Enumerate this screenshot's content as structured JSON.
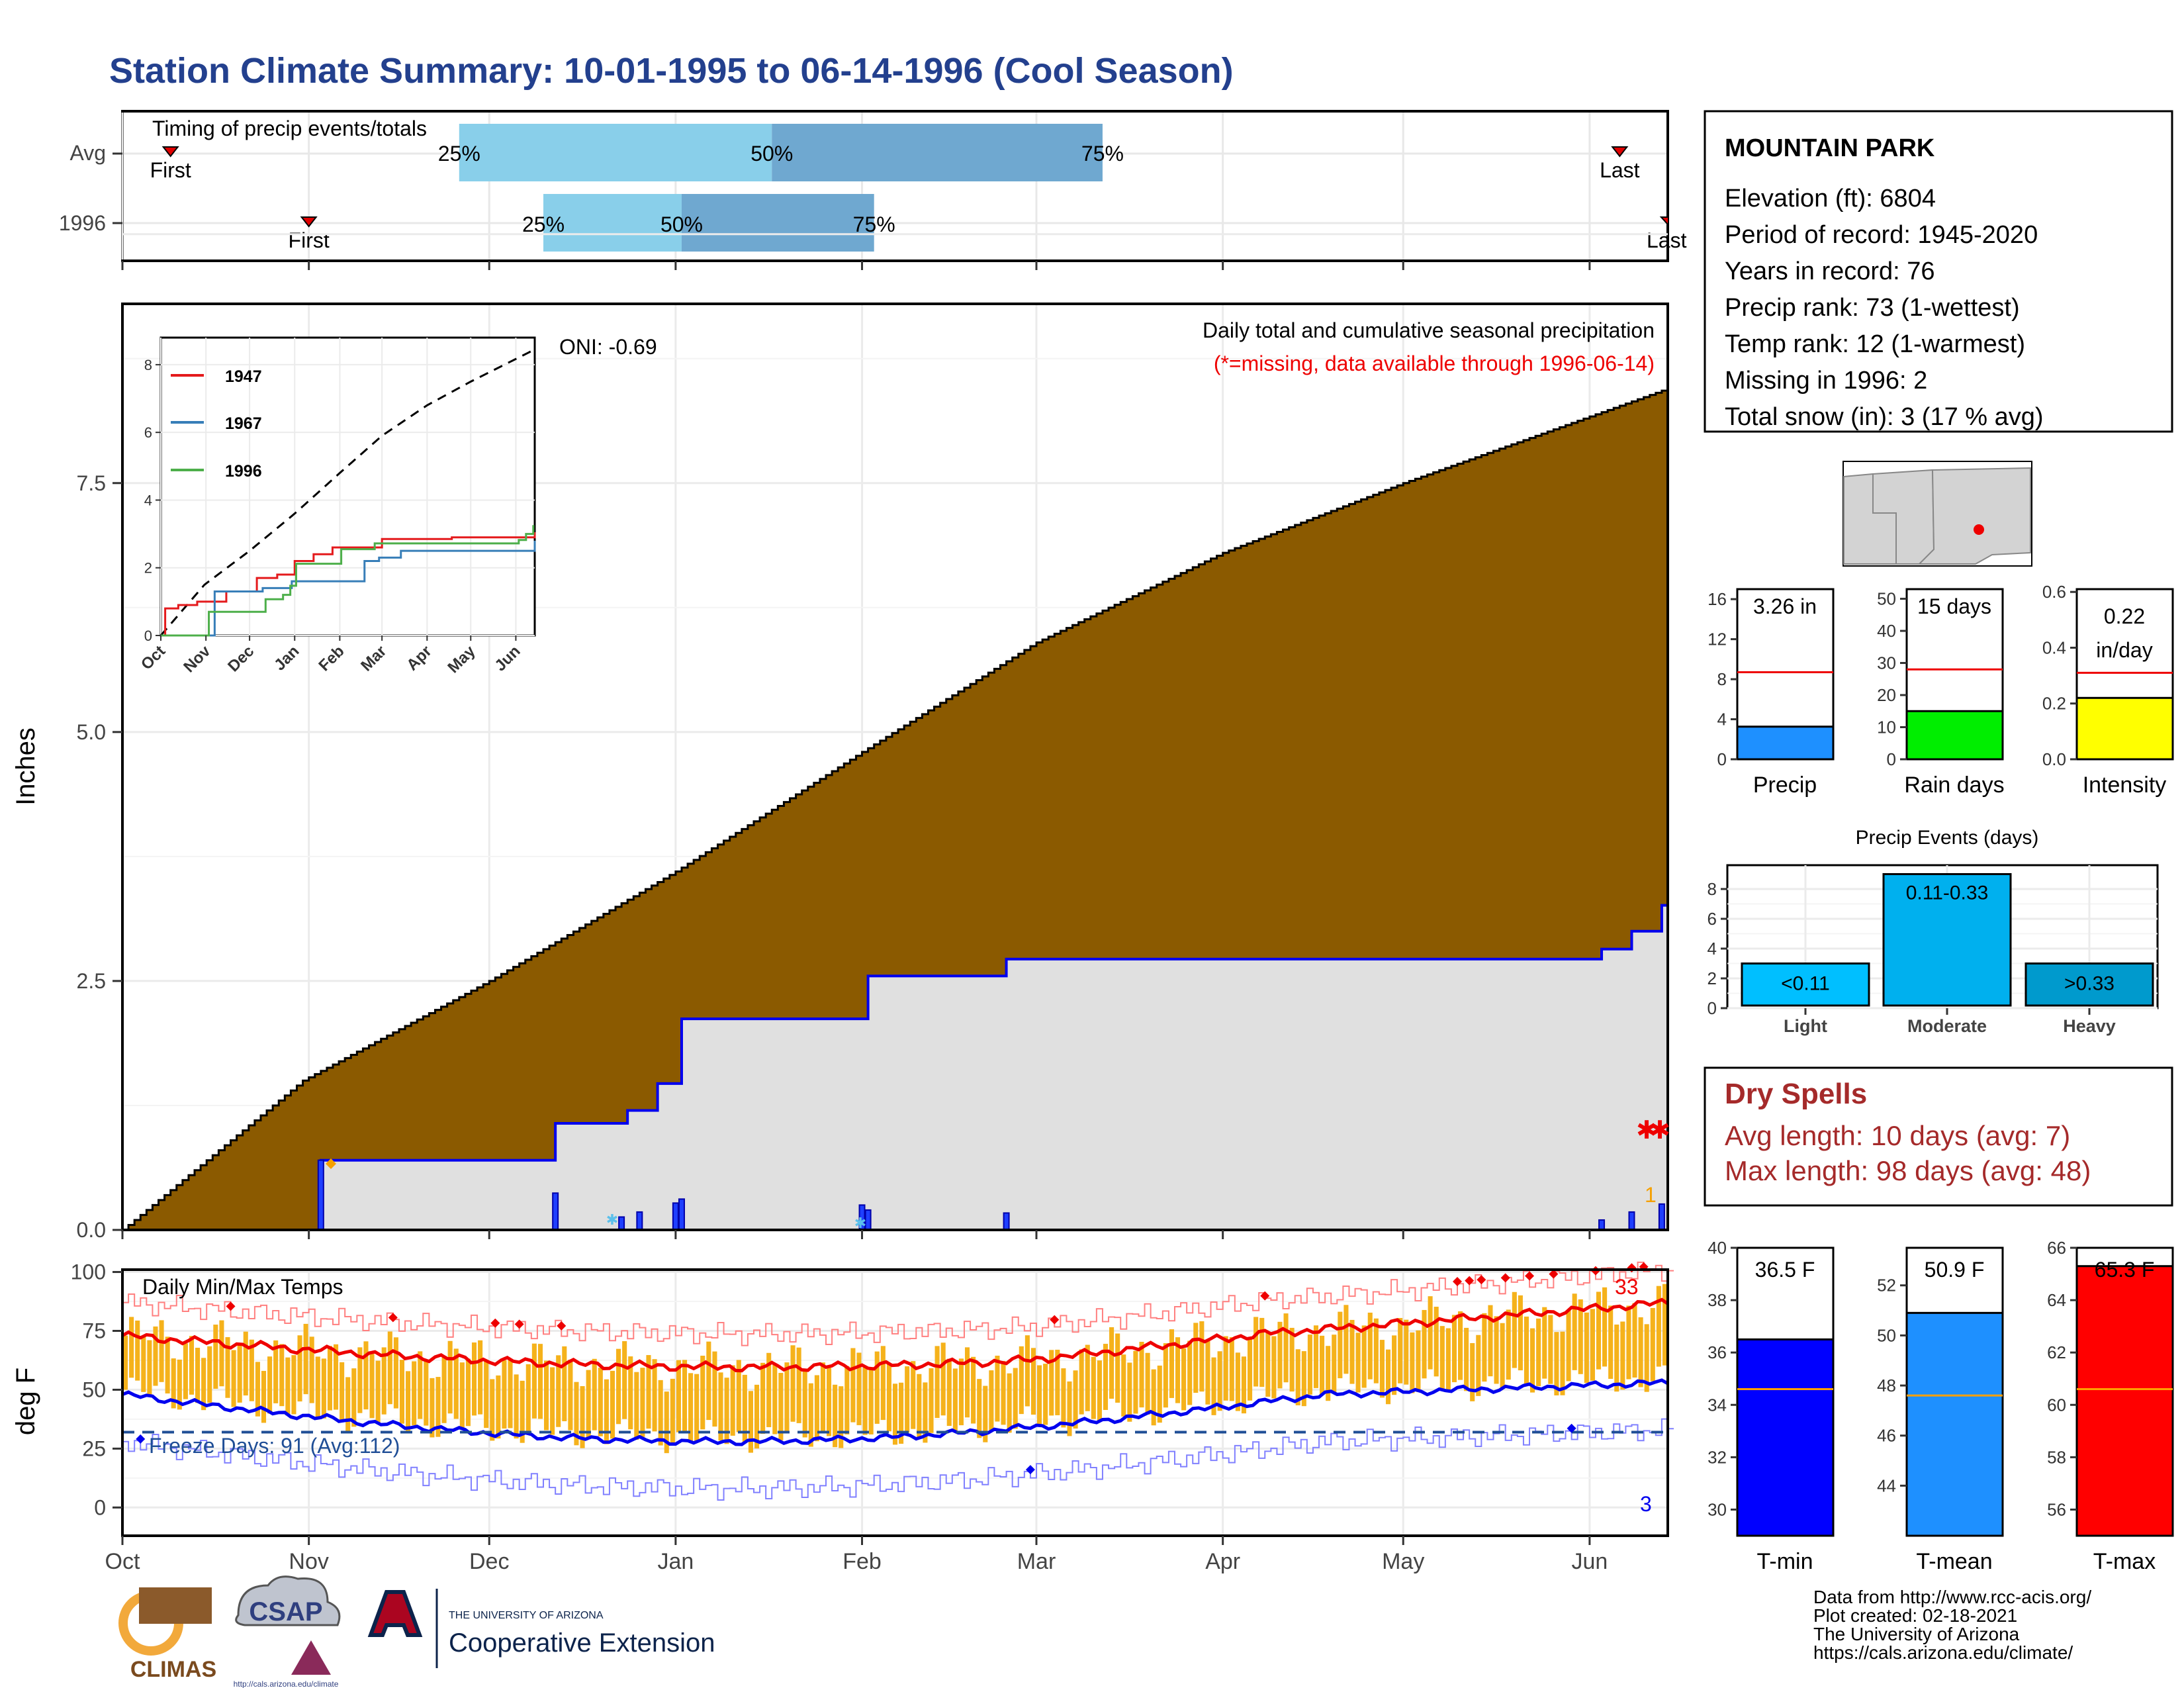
{
  "title": "Station Climate Summary: 10-01-1995 to 06-14-1996 (Cool Season)",
  "colors": {
    "title": "#23408e",
    "brown": "#8b5a00",
    "grey": "#e0e0e0",
    "blue": "#0000ee",
    "red": "#ee0000",
    "orange": "#f5b21b",
    "lightblue": "#89cfea",
    "midblue": "#6fa8d0",
    "navy": "#1f4e96"
  },
  "timing": {
    "label": "Timing of precip events/totals",
    "rows": [
      {
        "name": "Avg",
        "first": "First",
        "last": "Last",
        "p25": "25%",
        "p50": "50%",
        "p75": "75%"
      },
      {
        "name": "1996",
        "first": "First",
        "last": "Last",
        "p25": "25%",
        "p50": "50%",
        "p75": "75%"
      }
    ],
    "days": {
      "avg": {
        "first": 8,
        "p25": 56,
        "p50": 108,
        "p75": 163,
        "last": 249
      },
      "y1996": {
        "first": 31,
        "p25": 70,
        "p50": 93,
        "p75": 125,
        "last": 257
      }
    }
  },
  "station": {
    "name": "MOUNTAIN PARK",
    "lines": [
      "Elevation (ft): 6804",
      "Period of record: 1945-2020",
      "Years in record: 76",
      "Precip rank: 73 (1-wettest)",
      "Temp rank: 12 (1-warmest)",
      "Missing in 1996: 2",
      "Total snow (in): 3 (17 % avg)"
    ]
  },
  "precip_panel": {
    "ylabel": "Inches",
    "yticks": [
      "0.0",
      "2.5",
      "5.0",
      "7.5"
    ],
    "heading": "Daily total and cumulative seasonal precipitation",
    "missing_note": "(*=missing, data available through 1996-06-14)",
    "oni": "ONI: -0.69",
    "count_label": "1"
  },
  "months": [
    "Oct",
    "Nov",
    "Dec",
    "Jan",
    "Feb",
    "Mar",
    "Apr",
    "May",
    "Jun"
  ],
  "inset": {
    "yticks": [
      "0",
      "2",
      "4",
      "6",
      "8"
    ],
    "legend": [
      {
        "name": "1947",
        "color": "#e41a1c"
      },
      {
        "name": "1967",
        "color": "#377eb8"
      },
      {
        "name": "1996",
        "color": "#4daf4a"
      }
    ],
    "months": [
      "Oct",
      "Nov",
      "Dec",
      "Jan",
      "Feb",
      "Mar",
      "Apr",
      "May",
      "Jun"
    ]
  },
  "mini_bars": [
    {
      "label": "Precip",
      "value_text": "3.26 in",
      "value": 3.26,
      "avg": 8.7,
      "ymax": 17,
      "ticks": [
        "0",
        "4",
        "8",
        "12",
        "16"
      ],
      "tickvals": [
        0,
        4,
        8,
        12,
        16
      ],
      "color": "#1e90ff"
    },
    {
      "label": "Rain days",
      "value_text": "15 days",
      "value": 15,
      "avg": 28,
      "ymax": 53,
      "ticks": [
        "0",
        "10",
        "20",
        "30",
        "40",
        "50"
      ],
      "tickvals": [
        0,
        10,
        20,
        30,
        40,
        50
      ],
      "color": "#00ee00"
    },
    {
      "label": "Intensity",
      "value_text_1": "0.22",
      "value_text_2": "in/day",
      "value": 0.22,
      "avg": 0.31,
      "ymax": 0.61,
      "ticks": [
        "0.0",
        "0.2",
        "0.4",
        "0.6"
      ],
      "tickvals": [
        0,
        0.2,
        0.4,
        0.6
      ],
      "color": "#ffff00"
    }
  ],
  "events": {
    "title": "Precip Events (days)",
    "ticks": [
      "0",
      "2",
      "4",
      "6",
      "8"
    ],
    "bars": [
      {
        "label": "Light",
        "value": 3,
        "text": "<0.11",
        "color": "#00bfff"
      },
      {
        "label": "Moderate",
        "value": 9,
        "text": "0.11-0.33",
        "color": "#00b0ee"
      },
      {
        "label": "Heavy",
        "value": 3,
        "text": ">0.33",
        "color": "#009acd"
      }
    ]
  },
  "dry": {
    "title": "Dry Spells",
    "avg": "Avg length: 10 days (avg: 7)",
    "max": "Max length: 98 days (avg: 48)"
  },
  "temp_panel": {
    "ylabel": "deg F",
    "yticks": [
      "0",
      "25",
      "50",
      "75",
      "100"
    ],
    "heading": "Daily Min/Max Temps",
    "freeze": "Freeze Days: 91 (Avg:112)",
    "count_hot": "33",
    "count_cold": "3"
  },
  "temp_bars": [
    {
      "label": "T-min",
      "value_text": "36.5 F",
      "value": 36.5,
      "avg": 34.6,
      "ymin": 29,
      "ymax": 40,
      "ticks": [
        "30",
        "32",
        "34",
        "36",
        "38",
        "40"
      ],
      "tickvals": [
        30,
        32,
        34,
        36,
        38,
        40
      ],
      "color": "#0000ff"
    },
    {
      "label": "T-mean",
      "value_text": "50.9 F",
      "value": 50.9,
      "avg": 47.6,
      "ymin": 42,
      "ymax": 53.5,
      "ticks": [
        "44",
        "46",
        "48",
        "50",
        "52"
      ],
      "tickvals": [
        44,
        46,
        48,
        50,
        52
      ],
      "color": "#1e90ff"
    },
    {
      "label": "T-max",
      "value_text": "65.3 F",
      "value": 65.3,
      "avg": 60.6,
      "ymin": 55,
      "ymax": 66,
      "ticks": [
        "56",
        "58",
        "60",
        "62",
        "64",
        "66"
      ],
      "tickvals": [
        56,
        58,
        60,
        62,
        64,
        66
      ],
      "color": "#ff0000"
    }
  ],
  "footer": {
    "lines": [
      "Data from http://www.rcc-acis.org/",
      "Plot created: 02-18-2021",
      "The University of Arizona",
      "https://cals.arizona.edu/climate/"
    ],
    "ua_small": "THE UNIVERSITY OF ARIZONA",
    "ua_big": "Cooperative Extension",
    "climas": "CLIMAS",
    "csap": "CSAP",
    "csap_url": "http://cals.arizona.edu/climate"
  },
  "chart_data": {
    "type": "area",
    "x_unit": "day of season (0 = Oct 1)",
    "avg_cumulative_precip": [
      [
        0,
        0
      ],
      [
        30,
        1.5
      ],
      [
        61,
        2.5
      ],
      [
        92,
        3.6
      ],
      [
        123,
        4.8
      ],
      [
        152,
        5.9
      ],
      [
        183,
        6.8
      ],
      [
        213,
        7.5
      ],
      [
        257,
        8.45
      ]
    ],
    "cumulative_1996_precip": [
      [
        0,
        0
      ],
      [
        32,
        0
      ],
      [
        33,
        0.7
      ],
      [
        71,
        0.7
      ],
      [
        72,
        1.07
      ],
      [
        83,
        1.07
      ],
      [
        84,
        1.2
      ],
      [
        88,
        1.2
      ],
      [
        89,
        1.47
      ],
      [
        92,
        1.47
      ],
      [
        93,
        2.12
      ],
      [
        123,
        2.12
      ],
      [
        124,
        2.55
      ],
      [
        146,
        2.55
      ],
      [
        147,
        2.72
      ],
      [
        245,
        2.72
      ],
      [
        246,
        2.82
      ],
      [
        250,
        2.82
      ],
      [
        251,
        3.0
      ],
      [
        255,
        3.0
      ],
      [
        256,
        3.26
      ],
      [
        257,
        3.26
      ]
    ],
    "daily_1996_precip": [
      [
        33,
        0.7
      ],
      [
        72,
        0.37
      ],
      [
        83,
        0.13
      ],
      [
        86,
        0.18
      ],
      [
        92,
        0.27
      ],
      [
        93,
        0.31
      ],
      [
        123,
        0.25
      ],
      [
        124,
        0.2
      ],
      [
        147,
        0.17
      ],
      [
        246,
        0.1
      ],
      [
        251,
        0.18
      ],
      [
        256,
        0.26
      ]
    ],
    "temp_avg_max_start": 73,
    "temp_avg_max_end": 82,
    "temp_avg_min_start": 48,
    "temp_avg_min_end": 53,
    "freeze_line": 32,
    "xlim": [
      0,
      257
    ],
    "precip_ylim": [
      0,
      9.3
    ],
    "temp_ylim": [
      -12,
      101
    ]
  }
}
